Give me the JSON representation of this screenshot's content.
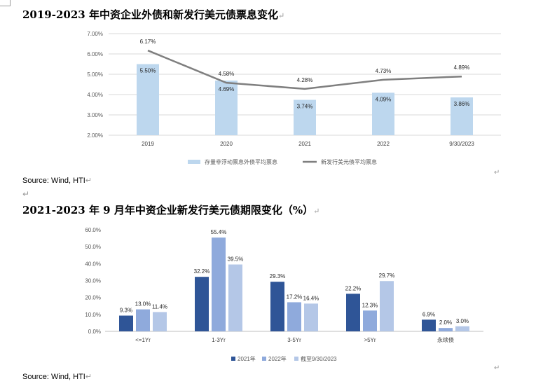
{
  "page": {
    "heading1": "2019-2023 年中资企业外债和新发行美元债票息变化",
    "heading2": "2021-2023 年 9 月年中资企业新发行美元债期限变化（%）",
    "source1": "Source: Wind, HTI",
    "source2": "Source: Wind, HTI",
    "return_mark": "↵",
    "para_mark": "↵"
  },
  "colors": {
    "bar_light": "#bdd7ee",
    "line_gray": "#7f7f7f",
    "dark_blue": "#2f5597",
    "mid_blue": "#8faadc",
    "pale_blue": "#b4c7e7",
    "grid": "#d9d9d9",
    "axis_text": "#595959"
  },
  "chart_data": [
    {
      "type": "bar+line",
      "categories": [
        "2019",
        "2020",
        "2021",
        "2022",
        "9/30/2023"
      ],
      "ylim": [
        2,
        7
      ],
      "yticks": [
        "2.00%",
        "3.00%",
        "4.00%",
        "5.00%",
        "6.00%",
        "7.00%"
      ],
      "series": [
        {
          "name": "存量非浮动票息外债平均票息",
          "kind": "bar",
          "values": [
            5.5,
            4.69,
            3.74,
            4.09,
            3.86
          ],
          "labels": [
            "5.50%",
            "4.69%",
            "3.74%",
            "4.09%",
            "3.86%"
          ]
        },
        {
          "name": "新发行美元债平均票息",
          "kind": "line",
          "values": [
            6.17,
            4.58,
            4.28,
            4.73,
            4.89
          ],
          "labels": [
            "6.17%",
            "4.58%",
            "4.28%",
            "4.73%",
            "4.89%"
          ]
        }
      ]
    },
    {
      "type": "bar",
      "categories": [
        "<=1Yr",
        "1-3Yr",
        "3-5Yr",
        ">5Yr",
        "永续债"
      ],
      "ylim": [
        0,
        60
      ],
      "yticks": [
        "0.0%",
        "10.0%",
        "20.0%",
        "30.0%",
        "40.0%",
        "50.0%",
        "60.0%"
      ],
      "series": [
        {
          "name": "2021年",
          "values": [
            9.3,
            32.2,
            29.3,
            22.2,
            6.9
          ],
          "labels": [
            "9.3%",
            "32.2%",
            "29.3%",
            "22.2%",
            "6.9%"
          ]
        },
        {
          "name": "2022年",
          "values": [
            13.0,
            55.4,
            17.2,
            12.3,
            2.0
          ],
          "labels": [
            "13.0%",
            "55.4%",
            "17.2%",
            "12.3%",
            "2.0%"
          ]
        },
        {
          "name": "截至9/30/2023",
          "values": [
            11.4,
            39.5,
            16.4,
            29.7,
            3.0
          ],
          "labels": [
            "11.4%",
            "39.5%",
            "16.4%",
            "29.7%",
            "3.0%"
          ]
        }
      ]
    }
  ]
}
